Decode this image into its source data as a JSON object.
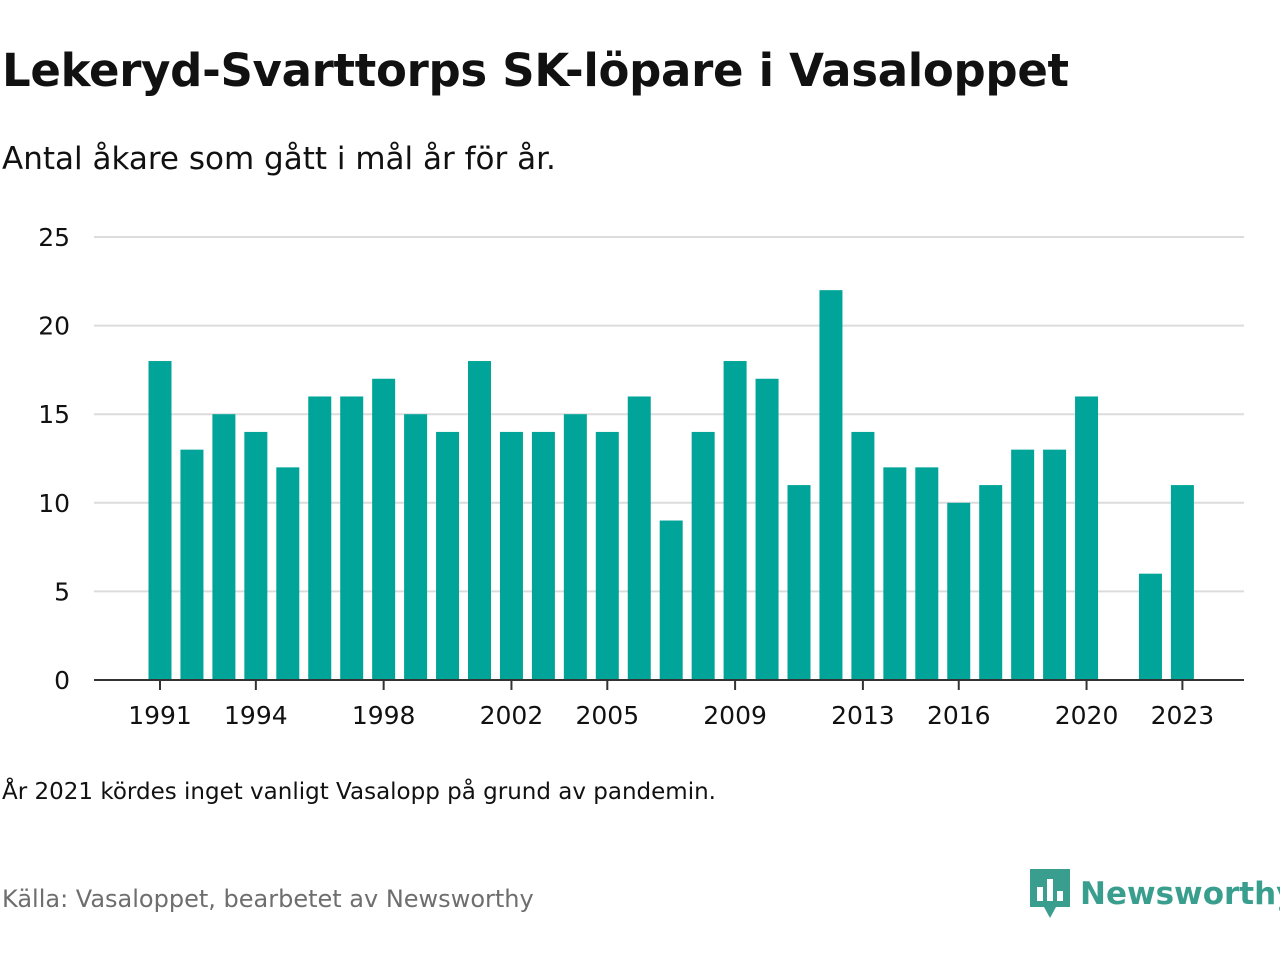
{
  "title": "Lekeryd-Svarttorps SK-löpare i Vasaloppet",
  "subtitle": "Antal åkare som gått i mål år för år.",
  "note": "År 2021 kördes inget vanligt Vasalopp på grund av pandemin.",
  "source": "Källa: Vasaloppet, bearbetet av Newsworthy",
  "brand": {
    "name": "Newsworthy",
    "icon": "newsworthy-logo-icon",
    "color": "#3a9e8f"
  },
  "colors": {
    "bar": "#00a499",
    "grid": "#dcdcdc",
    "axis": "#333333",
    "text": "#111111"
  },
  "chart_data": {
    "type": "bar",
    "categories": [
      1991,
      1992,
      1993,
      1994,
      1995,
      1996,
      1997,
      1998,
      1999,
      2000,
      2001,
      2002,
      2003,
      2004,
      2005,
      2006,
      2007,
      2008,
      2009,
      2010,
      2011,
      2012,
      2013,
      2014,
      2015,
      2016,
      2017,
      2018,
      2019,
      2020,
      2021,
      2022,
      2023
    ],
    "values": [
      18,
      13,
      15,
      14,
      12,
      16,
      16,
      17,
      15,
      14,
      18,
      14,
      14,
      15,
      14,
      16,
      9,
      14,
      18,
      17,
      11,
      22,
      14,
      12,
      12,
      10,
      11,
      13,
      13,
      16,
      null,
      6,
      11
    ],
    "x_tick_labels": [
      1991,
      1994,
      1998,
      2002,
      2005,
      2009,
      2013,
      2016,
      2020,
      2023
    ],
    "y_ticks": [
      0,
      5,
      10,
      15,
      20,
      25
    ],
    "ylim": [
      0,
      25
    ],
    "xlabel": "",
    "ylabel": "",
    "grid": true,
    "legend": "none"
  }
}
